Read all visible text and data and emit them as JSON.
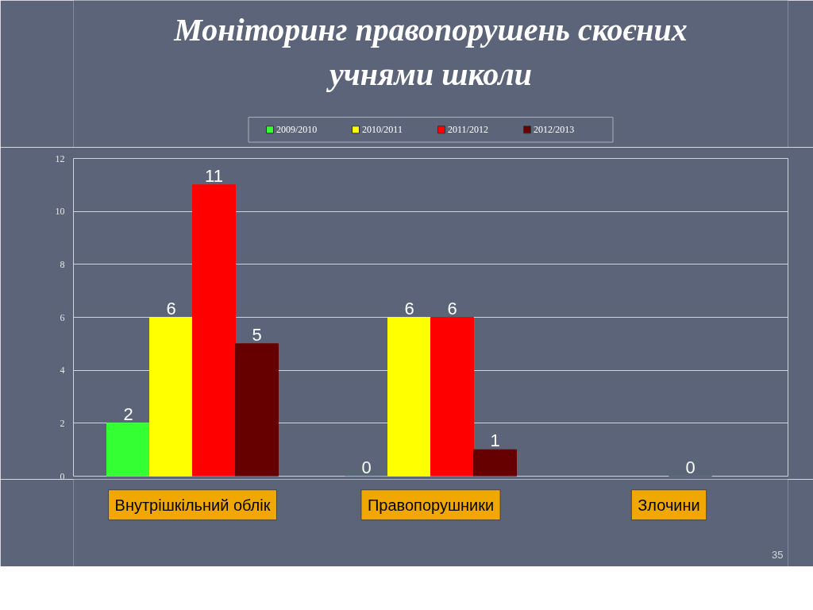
{
  "chart_data": {
    "type": "bar",
    "title": "Моніторинг правопорушень скоєних\nучнями школи",
    "categories": [
      "Внутрішкільний облік",
      "Правопорушники",
      "Злочини"
    ],
    "series": [
      {
        "name": "2009/2010",
        "color": "#33ff33",
        "values": [
          2,
          0,
          null
        ]
      },
      {
        "name": "2010/2011",
        "color": "#ffff00",
        "values": [
          6,
          6,
          null
        ]
      },
      {
        "name": "2011/2012",
        "color": "#ff0000",
        "values": [
          11,
          6,
          0
        ]
      },
      {
        "name": "2012/2013",
        "color": "#660000",
        "values": [
          5,
          1,
          null
        ]
      }
    ],
    "ylim": [
      0,
      12
    ],
    "yticks": [
      0,
      2,
      4,
      6,
      8,
      10,
      12
    ],
    "grid": "y",
    "legend": "top",
    "data_labels": true,
    "annotations": [
      "35"
    ]
  }
}
